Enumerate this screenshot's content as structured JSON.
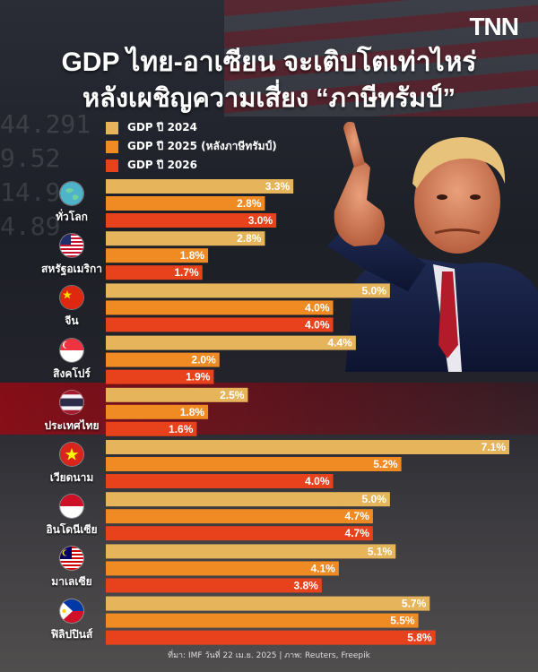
{
  "header": {
    "logo": "TNN",
    "title_line1": "GDP ไทย-อาเซียน จะเติบโตเท่าไหร่",
    "title_line2": "หลังเผชิญความเสี่ยง “ภาษีทรัมป์”"
  },
  "legend": [
    {
      "label": "GDP ปี 2024",
      "color": "#e6b45a"
    },
    {
      "label": "GDP ปี 2025 (หลังภาษีทรัมป์)",
      "color": "#f08a22"
    },
    {
      "label": "GDP ปี 2026",
      "color": "#e8421c"
    }
  ],
  "chart_data": {
    "type": "bar",
    "orientation": "horizontal",
    "categories": [
      "ทั่วโลก",
      "สหรัฐอเมริกา",
      "จีน",
      "สิงคโปร์",
      "ประเทศไทย",
      "เวียดนาม",
      "อินโดนีเซีย",
      "มาเลเซีย",
      "ฟิลิปปินส์"
    ],
    "series": [
      {
        "name": "GDP ปี 2024",
        "values": [
          3.3,
          2.8,
          5.0,
          4.4,
          2.5,
          7.1,
          5.0,
          5.1,
          5.7
        ],
        "labels": [
          "3.3%",
          "2.8%",
          "5.0%",
          "4.4%",
          "2.5%",
          "7.1%",
          "5.0%",
          "5.1%",
          "5.7%"
        ]
      },
      {
        "name": "GDP ปี 2025 (หลังภาษีทรัมป์)",
        "values": [
          2.8,
          1.8,
          4.0,
          2.0,
          1.8,
          5.2,
          4.7,
          4.1,
          5.5
        ],
        "labels": [
          "2.8%",
          "1.8%",
          "4.0%",
          "2.0%",
          "1.8%",
          "5.2%",
          "4.7%",
          "4.1%",
          "5.5%"
        ]
      },
      {
        "name": "GDP ปี 2026",
        "values": [
          3.0,
          1.7,
          4.0,
          1.9,
          1.6,
          4.0,
          4.7,
          3.8,
          5.8
        ],
        "labels": [
          "3.0%",
          "1.7%",
          "4.0%",
          "1.9%",
          "1.6%",
          "4.0%",
          "4.7%",
          "3.8%",
          "5.8%"
        ]
      }
    ],
    "xlim": [
      0,
      7.1
    ]
  },
  "countries": [
    {
      "name": "ทั่วโลก",
      "flag": "globe-icon"
    },
    {
      "name": "สหรัฐอเมริกา",
      "flag": "us-flag-icon"
    },
    {
      "name": "จีน",
      "flag": "china-flag-icon"
    },
    {
      "name": "สิงคโปร์",
      "flag": "singapore-flag-icon"
    },
    {
      "name": "ประเทศไทย",
      "flag": "thailand-flag-icon"
    },
    {
      "name": "เวียดนาม",
      "flag": "vietnam-flag-icon"
    },
    {
      "name": "อินโดนีเซีย",
      "flag": "indonesia-flag-icon"
    },
    {
      "name": "มาเลเซีย",
      "flag": "malaysia-flag-icon"
    },
    {
      "name": "ฟิลิปปินส์",
      "flag": "philippines-flag-icon"
    }
  ],
  "highlight_category": "ประเทศไทย",
  "footer": "ที่มา: IMF วันที่ 22 เม.ย. 2025 | ภาพ: Reuters, Freepik",
  "background_ticker": [
    "44.291",
    "9.52",
    "14.9",
    "4.89"
  ]
}
